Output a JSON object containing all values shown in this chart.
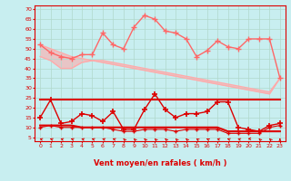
{
  "x": [
    0,
    1,
    2,
    3,
    4,
    5,
    6,
    7,
    8,
    9,
    10,
    11,
    12,
    13,
    14,
    15,
    16,
    17,
    18,
    19,
    20,
    21,
    22,
    23
  ],
  "rafales": [
    52,
    48,
    46,
    45,
    47,
    47,
    58,
    52,
    50,
    61,
    67,
    65,
    59,
    58,
    55,
    46,
    49,
    54,
    51,
    50,
    55,
    55,
    55,
    35
  ],
  "trend_upper": [
    52,
    50,
    48,
    46,
    45,
    44,
    43,
    42,
    41,
    40,
    39,
    38,
    37,
    36,
    35,
    34,
    33,
    32,
    31,
    30,
    29,
    28,
    27,
    35
  ],
  "trend_lower": [
    46,
    44,
    40,
    40,
    43,
    44,
    44,
    43,
    42,
    41,
    40,
    39,
    38,
    37,
    36,
    35,
    34,
    33,
    32,
    31,
    30,
    29,
    28,
    35
  ],
  "vent_flat_high": [
    24,
    24,
    24,
    24,
    24,
    24,
    24,
    24,
    24,
    24,
    24,
    24,
    24,
    24,
    24,
    24,
    24,
    24,
    24,
    24,
    24,
    24,
    24,
    24
  ],
  "vent_flat_low": [
    11,
    11,
    11,
    11,
    10,
    10,
    10,
    10,
    10,
    10,
    10,
    10,
    10,
    10,
    10,
    10,
    10,
    10,
    8,
    8,
    8,
    8,
    8,
    8
  ],
  "vent_moy": [
    15,
    24,
    12,
    13,
    17,
    16,
    13,
    18,
    9,
    9,
    19,
    27,
    19,
    15,
    17,
    17,
    18,
    23,
    23,
    10,
    9,
    8,
    11,
    12
  ],
  "vent_min": [
    10,
    11,
    10,
    10,
    10,
    10,
    10,
    9,
    8,
    8,
    9,
    9,
    9,
    8,
    9,
    9,
    9,
    9,
    7,
    7,
    7,
    7,
    10,
    11
  ],
  "color_light_pink": "#ffaaaa",
  "color_med_pink": "#ff8888",
  "color_dark_pink": "#ff6666",
  "color_red": "#dd0000",
  "color_bright_red": "#ff0000",
  "bg_color": "#c8eef0",
  "grid_color": "#b0d8cc",
  "xlabel": "Vent moyen/en rafales ( km/h )",
  "yticks": [
    5,
    10,
    15,
    20,
    25,
    30,
    35,
    40,
    45,
    50,
    55,
    60,
    65,
    70
  ],
  "ylim": [
    3,
    72
  ],
  "xlim": [
    -0.5,
    23.5
  ]
}
